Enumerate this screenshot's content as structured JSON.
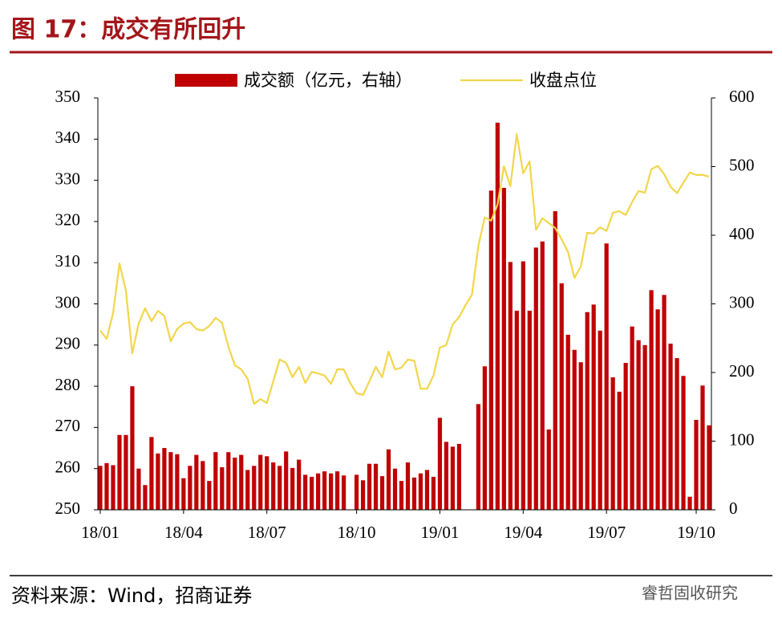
{
  "chart_data": {
    "type": "bar-line",
    "title": "图 17：成交有所回升",
    "categories": [
      "18/01",
      null,
      null,
      null,
      null,
      null,
      null,
      null,
      null,
      null,
      null,
      null,
      null,
      "18/04",
      null,
      null,
      null,
      null,
      null,
      null,
      null,
      null,
      null,
      null,
      null,
      null,
      "18/07",
      null,
      null,
      null,
      null,
      null,
      null,
      null,
      null,
      null,
      null,
      null,
      null,
      null,
      "18/10",
      null,
      null,
      null,
      null,
      null,
      null,
      null,
      null,
      null,
      null,
      null,
      null,
      "19/01",
      null,
      null,
      null,
      null,
      null,
      null,
      null,
      null,
      null,
      null,
      null,
      null,
      "19/04",
      null,
      null,
      null,
      null,
      null,
      null,
      null,
      null,
      null,
      null,
      null,
      null,
      "19/07",
      null,
      null,
      null,
      null,
      null,
      null,
      null,
      null,
      null,
      null,
      null,
      null,
      null,
      "19/10",
      null,
      null
    ],
    "series": [
      {
        "name": "成交额（亿元，右轴）",
        "color": "#c00000",
        "axis": "y2",
        "values": [
          64,
          68,
          65,
          109,
          109,
          180,
          60,
          36,
          106,
          82,
          90,
          84,
          81,
          46,
          64,
          80,
          71,
          42,
          84,
          62,
          84,
          76,
          80,
          58,
          64,
          80,
          78,
          69,
          64,
          85,
          61,
          73,
          51,
          48,
          53,
          56,
          53,
          56,
          50,
          null,
          51,
          43,
          67,
          67,
          49,
          88,
          60,
          42,
          69,
          47,
          53,
          58,
          48,
          134,
          99,
          92,
          96,
          null,
          null,
          154,
          209,
          465,
          564,
          469,
          361,
          290,
          362,
          290,
          382,
          391,
          117,
          435,
          330,
          255,
          233,
          215,
          288,
          299,
          261,
          388,
          193,
          172,
          214,
          267,
          247,
          240,
          320,
          292,
          313,
          242,
          221,
          195,
          19,
          131,
          181,
          123
        ]
      },
      {
        "name": "收盘点位",
        "color": "#f2d64b",
        "values": [
          293.5,
          291.5,
          297.8,
          309.8,
          303.2,
          288.0,
          295.2,
          298.9,
          295.8,
          298.3,
          297.1,
          290.9,
          293.9,
          295.2,
          295.6,
          293.9,
          293.5,
          294.6,
          296.6,
          295.4,
          289.6,
          285.1,
          284.1,
          281.8,
          275.7,
          276.9,
          275.9,
          281.2,
          286.5,
          285.7,
          282.2,
          284.7,
          280.8,
          283.5,
          283.1,
          282.6,
          280.6,
          284.1,
          284.1,
          280.8,
          278.3,
          277.9,
          281.2,
          284.7,
          282.2,
          288.4,
          284.1,
          284.5,
          286.5,
          286.2,
          279.4,
          279.4,
          282.6,
          289.4,
          290.0,
          295.0,
          296.8,
          299.7,
          302.2,
          314.1,
          321.0,
          320.2,
          324.1,
          333.4,
          328.6,
          341.2,
          331.7,
          334.6,
          318.0,
          320.8,
          319.6,
          318.4,
          315.7,
          312.6,
          306.3,
          309.1,
          317.3,
          317.1,
          318.6,
          317.7,
          322.1,
          322.5,
          321.6,
          324.7,
          327.4,
          327.0,
          332.7,
          333.5,
          331.5,
          328.4,
          326.9,
          329.4,
          331.9,
          331.3,
          331.3,
          330.9
        ]
      }
    ],
    "ylim": [
      250,
      350
    ],
    "yticks": [
      250,
      260,
      270,
      280,
      290,
      300,
      310,
      320,
      330,
      340,
      350
    ],
    "y2lim": [
      0,
      600
    ],
    "y2ticks": [
      0,
      100,
      200,
      300,
      400,
      500,
      600
    ],
    "legend": "top"
  },
  "footer": {
    "source": "资料来源：Wind，招商证券",
    "watermark": "睿哲固收研究"
  }
}
